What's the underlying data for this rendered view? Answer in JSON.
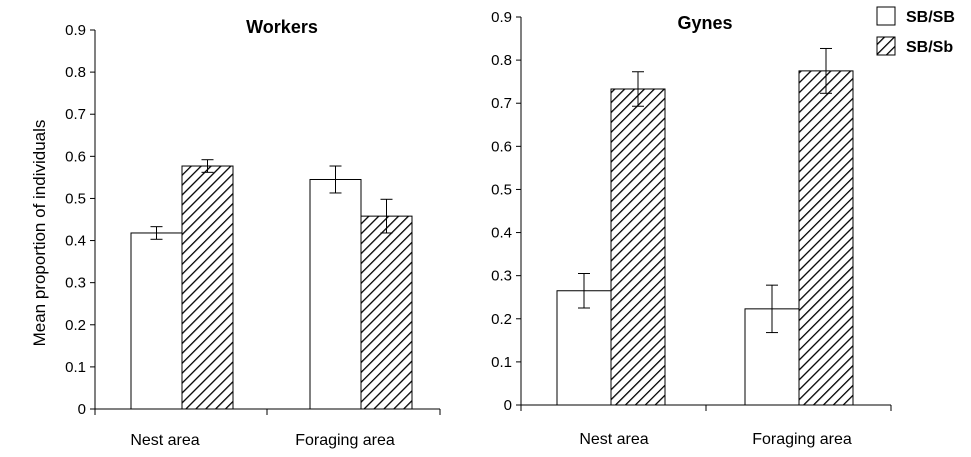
{
  "chart_data": [
    {
      "type": "bar",
      "title": "Workers",
      "ylabel": "Mean proportion of individuals",
      "xlabel": "",
      "ylim": [
        0,
        0.9
      ],
      "yticks": [
        "0",
        "0.1",
        "0.2",
        "0.3",
        "0.4",
        "0.5",
        "0.6",
        "0.7",
        "0.8",
        "0.9"
      ],
      "categories": [
        "Nest area",
        "Foraging area"
      ],
      "series": [
        {
          "name": "SB/SB",
          "values": [
            0.418,
            0.545
          ],
          "errors": [
            0.015,
            0.032
          ]
        },
        {
          "name": "SB/Sb",
          "values": [
            0.577,
            0.458
          ],
          "errors": [
            0.015,
            0.04
          ]
        }
      ]
    },
    {
      "type": "bar",
      "title": "Gynes",
      "ylabel": "",
      "xlabel": "",
      "ylim": [
        0,
        0.9
      ],
      "yticks": [
        "0",
        "0.1",
        "0.2",
        "0.3",
        "0.4",
        "0.5",
        "0.6",
        "0.7",
        "0.8",
        "0.9"
      ],
      "categories": [
        "Nest area",
        "Foraging area"
      ],
      "series": [
        {
          "name": "SB/SB",
          "values": [
            0.265,
            0.223
          ],
          "errors": [
            0.04,
            0.055
          ]
        },
        {
          "name": "SB/Sb",
          "values": [
            0.733,
            0.775
          ],
          "errors": [
            0.04,
            0.052
          ]
        }
      ]
    }
  ],
  "legend": {
    "placement": "top-right",
    "items": [
      {
        "label": "SB/SB",
        "fill": "white"
      },
      {
        "label": "SB/Sb",
        "fill": "hatched"
      }
    ]
  }
}
